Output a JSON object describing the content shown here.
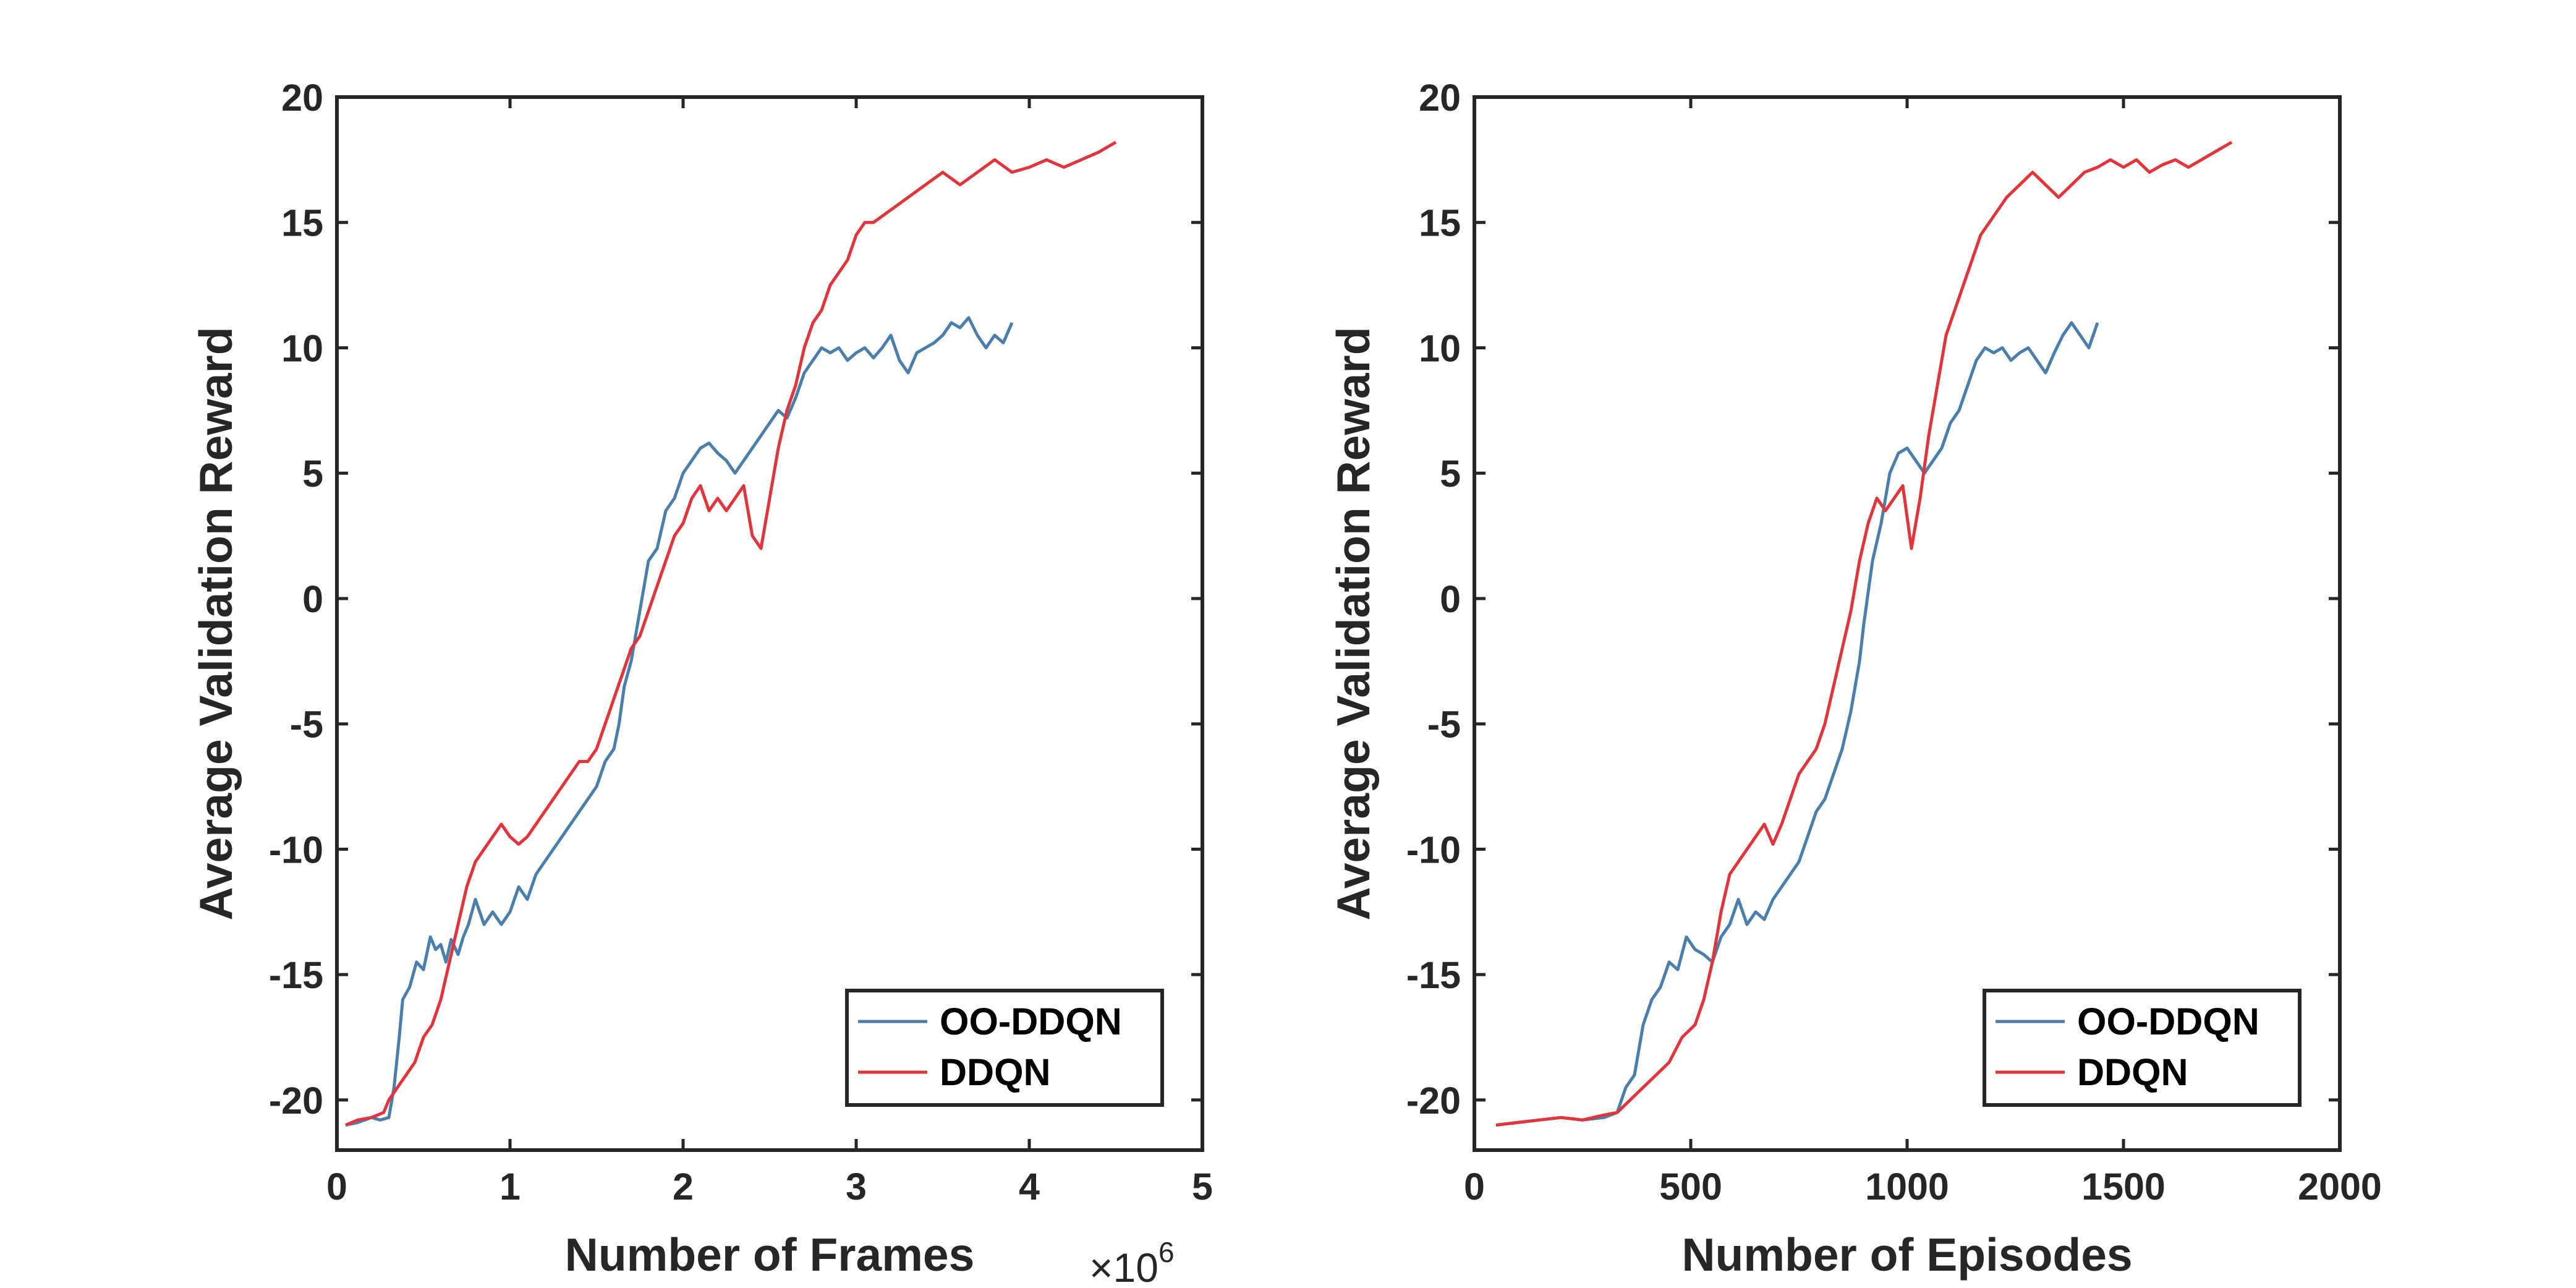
{
  "colors": {
    "oo_ddqn": "#4a7fad",
    "ddqn": "#e2343b",
    "axis": "#262626"
  },
  "chart_data": [
    {
      "type": "line",
      "title": "",
      "xlabel": "Number of Frames",
      "ylabel": "Average Validation Reward",
      "x_multiplier": {
        "base": "×10",
        "exponent": "6"
      },
      "xlim": [
        0,
        5
      ],
      "ylim": [
        -22,
        20
      ],
      "xticks": [
        0,
        1,
        2,
        3,
        4,
        5
      ],
      "yticks": [
        -20,
        -15,
        -10,
        -5,
        0,
        5,
        10,
        15,
        20
      ],
      "grid": false,
      "legend_position": "bottom-right",
      "series": [
        {
          "name": "OO-DDQN",
          "color": "#4a7fad",
          "x": [
            0.05,
            0.12,
            0.2,
            0.25,
            0.3,
            0.33,
            0.36,
            0.38,
            0.42,
            0.46,
            0.5,
            0.54,
            0.57,
            0.6,
            0.63,
            0.66,
            0.7,
            0.73,
            0.76,
            0.8,
            0.85,
            0.9,
            0.95,
            1.0,
            1.05,
            1.1,
            1.15,
            1.2,
            1.25,
            1.3,
            1.35,
            1.4,
            1.45,
            1.5,
            1.55,
            1.6,
            1.63,
            1.66,
            1.7,
            1.75,
            1.8,
            1.85,
            1.9,
            1.95,
            2.0,
            2.05,
            2.1,
            2.15,
            2.2,
            2.25,
            2.3,
            2.35,
            2.4,
            2.45,
            2.5,
            2.55,
            2.6,
            2.65,
            2.7,
            2.75,
            2.8,
            2.85,
            2.9,
            2.95,
            3.0,
            3.05,
            3.1,
            3.15,
            3.2,
            3.25,
            3.3,
            3.35,
            3.4,
            3.45,
            3.5,
            3.55,
            3.6,
            3.65,
            3.7,
            3.75,
            3.8,
            3.85,
            3.9
          ],
          "y": [
            -21.0,
            -20.9,
            -20.7,
            -20.8,
            -20.7,
            -19.5,
            -17.5,
            -16.0,
            -15.5,
            -14.5,
            -14.8,
            -13.5,
            -14.0,
            -13.8,
            -14.5,
            -13.6,
            -14.2,
            -13.5,
            -13.0,
            -12.0,
            -13.0,
            -12.5,
            -13.0,
            -12.5,
            -11.5,
            -12.0,
            -11.0,
            -10.5,
            -10.0,
            -9.5,
            -9.0,
            -8.5,
            -8.0,
            -7.5,
            -6.5,
            -6.0,
            -5.0,
            -3.5,
            -2.5,
            -0.5,
            1.5,
            2.0,
            3.5,
            4.0,
            5.0,
            5.5,
            6.0,
            6.2,
            5.8,
            5.5,
            5.0,
            5.5,
            6.0,
            6.5,
            7.0,
            7.5,
            7.2,
            8.0,
            9.0,
            9.5,
            10.0,
            9.8,
            10.0,
            9.5,
            9.8,
            10.0,
            9.6,
            10.0,
            10.5,
            9.5,
            9.0,
            9.8,
            10.0,
            10.2,
            10.5,
            11.0,
            10.8,
            11.2,
            10.5,
            10.0,
            10.5,
            10.2,
            11.0
          ]
        },
        {
          "name": "DDQN",
          "color": "#e2343b",
          "x": [
            0.05,
            0.12,
            0.2,
            0.27,
            0.3,
            0.35,
            0.4,
            0.45,
            0.5,
            0.55,
            0.6,
            0.65,
            0.7,
            0.75,
            0.8,
            0.85,
            0.9,
            0.95,
            1.0,
            1.05,
            1.1,
            1.15,
            1.2,
            1.25,
            1.3,
            1.35,
            1.4,
            1.45,
            1.5,
            1.55,
            1.6,
            1.65,
            1.7,
            1.75,
            1.8,
            1.85,
            1.9,
            1.95,
            2.0,
            2.05,
            2.1,
            2.15,
            2.2,
            2.25,
            2.3,
            2.35,
            2.4,
            2.45,
            2.5,
            2.55,
            2.6,
            2.65,
            2.7,
            2.75,
            2.8,
            2.85,
            2.9,
            2.95,
            3.0,
            3.05,
            3.1,
            3.2,
            3.3,
            3.4,
            3.5,
            3.6,
            3.7,
            3.8,
            3.9,
            4.0,
            4.1,
            4.2,
            4.3,
            4.4,
            4.5
          ],
          "y": [
            -21.0,
            -20.8,
            -20.7,
            -20.5,
            -20.0,
            -19.5,
            -19.0,
            -18.5,
            -17.5,
            -17.0,
            -16.0,
            -14.5,
            -13.0,
            -11.5,
            -10.5,
            -10.0,
            -9.5,
            -9.0,
            -9.5,
            -9.8,
            -9.5,
            -9.0,
            -8.5,
            -8.0,
            -7.5,
            -7.0,
            -6.5,
            -6.5,
            -6.0,
            -5.0,
            -4.0,
            -3.0,
            -2.0,
            -1.5,
            -0.5,
            0.5,
            1.5,
            2.5,
            3.0,
            4.0,
            4.5,
            3.5,
            4.0,
            3.5,
            4.0,
            4.5,
            2.5,
            2.0,
            4.0,
            6.0,
            7.5,
            8.5,
            10.0,
            11.0,
            11.5,
            12.5,
            13.0,
            13.5,
            14.5,
            15.0,
            15.0,
            15.5,
            16.0,
            16.5,
            17.0,
            16.5,
            17.0,
            17.5,
            17.0,
            17.2,
            17.5,
            17.2,
            17.5,
            17.8,
            18.2
          ]
        }
      ]
    },
    {
      "type": "line",
      "title": "",
      "xlabel": "Number of Episodes",
      "ylabel": "Average Validation Reward",
      "xlim": [
        0,
        2000
      ],
      "ylim": [
        -22,
        20
      ],
      "xticks": [
        0,
        500,
        1000,
        1500,
        2000
      ],
      "yticks": [
        -20,
        -15,
        -10,
        -5,
        0,
        5,
        10,
        15,
        20
      ],
      "grid": false,
      "legend_position": "bottom-right",
      "series": [
        {
          "name": "OO-DDQN",
          "color": "#4a7fad",
          "x": [
            50,
            100,
            150,
            200,
            250,
            300,
            330,
            350,
            370,
            390,
            410,
            430,
            450,
            470,
            490,
            510,
            530,
            550,
            570,
            590,
            610,
            630,
            650,
            670,
            690,
            710,
            730,
            750,
            770,
            790,
            810,
            830,
            850,
            870,
            890,
            900,
            920,
            940,
            960,
            980,
            1000,
            1020,
            1040,
            1060,
            1080,
            1100,
            1120,
            1140,
            1160,
            1180,
            1200,
            1220,
            1240,
            1260,
            1280,
            1300,
            1320,
            1340,
            1360,
            1380,
            1400,
            1420,
            1440
          ],
          "y": [
            -21.0,
            -20.9,
            -20.8,
            -20.7,
            -20.8,
            -20.7,
            -20.5,
            -19.5,
            -19.0,
            -17.0,
            -16.0,
            -15.5,
            -14.5,
            -14.8,
            -13.5,
            -14.0,
            -14.2,
            -14.5,
            -13.5,
            -13.0,
            -12.0,
            -13.0,
            -12.5,
            -12.8,
            -12.0,
            -11.5,
            -11.0,
            -10.5,
            -9.5,
            -8.5,
            -8.0,
            -7.0,
            -6.0,
            -4.5,
            -2.5,
            -1.0,
            1.5,
            3.0,
            5.0,
            5.8,
            6.0,
            5.5,
            5.0,
            5.5,
            6.0,
            7.0,
            7.5,
            8.5,
            9.5,
            10.0,
            9.8,
            10.0,
            9.5,
            9.8,
            10.0,
            9.5,
            9.0,
            9.8,
            10.5,
            11.0,
            10.5,
            10.0,
            11.0
          ]
        },
        {
          "name": "DDQN",
          "color": "#e2343b",
          "x": [
            50,
            100,
            150,
            200,
            250,
            300,
            330,
            360,
            390,
            420,
            450,
            480,
            510,
            530,
            550,
            570,
            590,
            610,
            630,
            650,
            670,
            690,
            710,
            730,
            750,
            770,
            790,
            810,
            830,
            850,
            870,
            890,
            910,
            930,
            950,
            970,
            990,
            1010,
            1030,
            1050,
            1070,
            1090,
            1110,
            1130,
            1150,
            1170,
            1190,
            1210,
            1230,
            1260,
            1290,
            1320,
            1350,
            1380,
            1410,
            1440,
            1470,
            1500,
            1530,
            1560,
            1590,
            1620,
            1650,
            1680,
            1710,
            1750
          ],
          "y": [
            -21.0,
            -20.9,
            -20.8,
            -20.7,
            -20.8,
            -20.6,
            -20.5,
            -20.0,
            -19.5,
            -19.0,
            -18.5,
            -17.5,
            -17.0,
            -16.0,
            -14.5,
            -12.5,
            -11.0,
            -10.5,
            -10.0,
            -9.5,
            -9.0,
            -9.8,
            -9.0,
            -8.0,
            -7.0,
            -6.5,
            -6.0,
            -5.0,
            -3.5,
            -2.0,
            -0.5,
            1.5,
            3.0,
            4.0,
            3.5,
            4.0,
            4.5,
            2.0,
            4.0,
            6.5,
            8.5,
            10.5,
            11.5,
            12.5,
            13.5,
            14.5,
            15.0,
            15.5,
            16.0,
            16.5,
            17.0,
            16.5,
            16.0,
            16.5,
            17.0,
            17.2,
            17.5,
            17.2,
            17.5,
            17.0,
            17.3,
            17.5,
            17.2,
            17.5,
            17.8,
            18.2
          ]
        }
      ]
    }
  ]
}
